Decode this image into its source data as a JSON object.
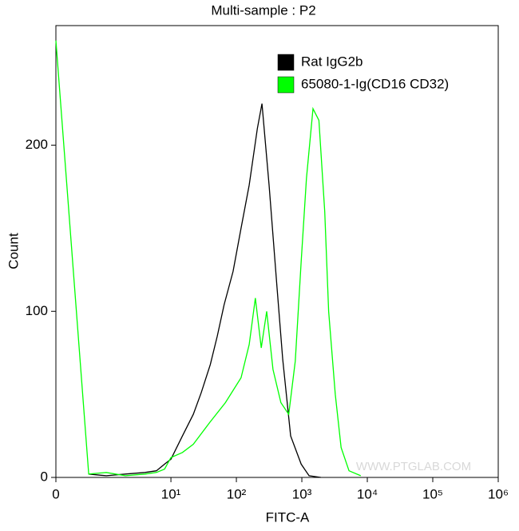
{
  "chart_data": {
    "type": "line",
    "title": "Multi-sample : P2",
    "x_label": "FITC-A",
    "y_label": "Count",
    "watermark": "WWW.PTGLAB.COM",
    "xscale": "biexponential",
    "xlim": [
      0,
      1000000
    ],
    "xticks": [
      0,
      {
        "value": 10,
        "label": "10¹"
      },
      {
        "value": 100,
        "label": "10²"
      },
      {
        "value": 1000,
        "label": "10³"
      },
      {
        "value": 10000,
        "label": "10⁴"
      },
      {
        "value": 100000,
        "label": "10⁵"
      },
      {
        "value": 1000000,
        "label": "10⁶"
      }
    ],
    "ylim": [
      0,
      272
    ],
    "yticks": [
      0,
      100,
      200
    ],
    "legend": "upper right",
    "series": [
      {
        "name": "Rat IgG2b",
        "color": "#000000",
        "x": [
          0.5,
          1,
          2,
          4,
          6,
          8,
          10,
          15,
          22,
          29,
          40,
          51,
          65,
          89,
          118,
          157,
          209,
          246,
          316,
          418,
          511,
          675,
          977,
          1290,
          1950
        ],
        "values": [
          2,
          1,
          2,
          3,
          4,
          8,
          11,
          25,
          38,
          51,
          68,
          85,
          104,
          124,
          150,
          176,
          210,
          225,
          176,
          114,
          71,
          25,
          8,
          1,
          0
        ]
      },
      {
        "name": "65080-1-Ig(CD16 CD32)",
        "color": "#00ff00",
        "x": [
          0,
          0.5,
          1,
          2,
          4,
          6,
          8,
          10,
          15,
          22,
          39,
          68,
          118,
          157,
          195,
          240,
          290,
          363,
          479,
          631,
          794,
          977,
          1175,
          1480,
          1820,
          2240,
          2570,
          3240,
          3980,
          5250,
          7940
        ],
        "values": [
          263,
          2,
          3,
          1,
          2,
          3,
          5,
          12,
          15,
          20,
          33,
          45,
          60,
          80,
          108,
          78,
          100,
          65,
          45,
          38,
          70,
          130,
          180,
          222,
          215,
          160,
          100,
          50,
          18,
          4,
          1
        ]
      }
    ]
  }
}
